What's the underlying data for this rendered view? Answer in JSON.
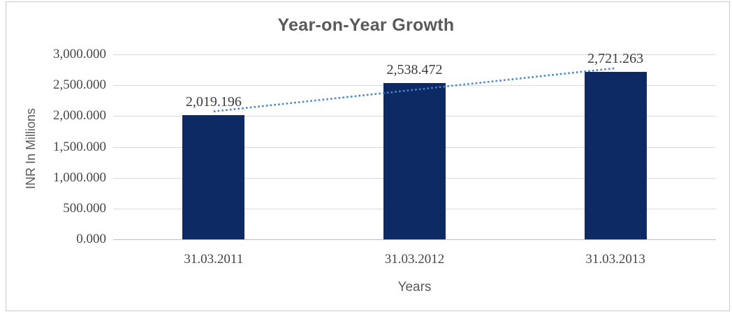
{
  "chart_data": {
    "type": "bar",
    "title": "Year-on-Year Growth",
    "xlabel": "Years",
    "ylabel": "INR In Millions",
    "categories": [
      "31.03.2011",
      "31.03.2012",
      "31.03.2013"
    ],
    "values": [
      2019.196,
      2538.472,
      2721.263
    ],
    "value_labels": [
      "2,019.196",
      "2,538.472",
      "2,721.263"
    ],
    "ylim": [
      0,
      3000
    ],
    "yticks": [
      0,
      500,
      1000,
      1500,
      2000,
      2500,
      3000
    ],
    "ytick_labels": [
      "0.000",
      "500.000",
      "1,000.000",
      "1,500.000",
      "2,000.000",
      "2,500.000",
      "3,000.000"
    ],
    "grid": true,
    "legend": "none",
    "trendline": {
      "type": "linear",
      "style": "dotted",
      "color": "#4a86c8"
    },
    "colors": {
      "bar": "#0d2a64",
      "gridline": "#d9d9d9",
      "axis_line": "#bfbfbf",
      "frame_border": "#c9c9c9",
      "title_text": "#595959",
      "axis_title_text": "#595959",
      "tick_text": "#464646",
      "data_label_text": "#3c3c3c",
      "background": "#ffffff"
    }
  }
}
